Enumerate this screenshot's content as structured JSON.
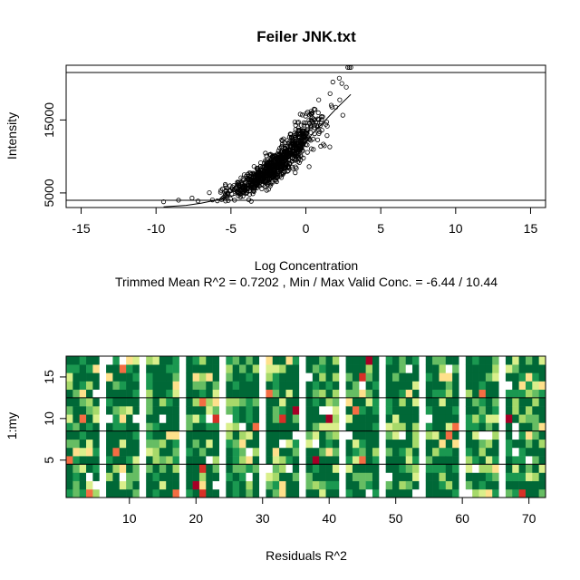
{
  "chart_data": [
    {
      "type": "scatter",
      "title": "Feiler JNK.txt",
      "xlabel": "Log Concentration",
      "ylabel": "Intensity",
      "subtitle": "Trimmed Mean R^2 = 0.7202 , Min / Max Valid Conc. = -6.44 / 10.44",
      "xlim": [
        -16,
        16
      ],
      "ylim": [
        3000,
        22500
      ],
      "x_ticks": [
        -15,
        -10,
        -5,
        0,
        5,
        10,
        15
      ],
      "y_ticks": [
        5000,
        15000
      ],
      "hlines": [
        4000,
        21500
      ],
      "grid": false,
      "fit_curve": {
        "x": [
          -9.5,
          -8,
          -7,
          -6,
          -5,
          -4,
          -3,
          -2,
          -1,
          0,
          1,
          2,
          3
        ],
        "y": [
          3100,
          3300,
          3600,
          4000,
          4500,
          5300,
          6500,
          8100,
          10000,
          12100,
          14300,
          16500,
          18500
        ]
      },
      "point_cloud": {
        "x_range": [
          -6.5,
          2.5
        ],
        "n_points": 900,
        "color": "#000000",
        "outliers": [
          {
            "x": -9.5,
            "y": 3800
          },
          {
            "x": -8.5,
            "y": 4000
          },
          {
            "x": -7.6,
            "y": 4300
          },
          {
            "x": -7.2,
            "y": 3900
          },
          {
            "x": 2.8,
            "y": 22200
          },
          {
            "x": 2.9,
            "y": 22200
          },
          {
            "x": 3.0,
            "y": 22200
          },
          {
            "x": 2.4,
            "y": 20000
          },
          {
            "x": 2.7,
            "y": 19500
          },
          {
            "x": 1.8,
            "y": 20200
          }
        ]
      }
    },
    {
      "type": "heatmap",
      "xlabel": "Residuals R^2",
      "ylabel": "1:my",
      "xlim": [
        0.5,
        72.5
      ],
      "ylim": [
        0.5,
        17.5
      ],
      "x_ticks": [
        10,
        20,
        30,
        40,
        50,
        60,
        70
      ],
      "y_ticks": [
        5,
        10,
        15
      ],
      "hlines": [
        4.5,
        8.5,
        12.5
      ],
      "columns": 72,
      "rows": 17,
      "white_columns": [
        6,
        12,
        18,
        24,
        30,
        36,
        42,
        48,
        54,
        60,
        66
      ],
      "palette": {
        "dark_green": "#006837",
        "green": "#1a9850",
        "light_green": "#66bd63",
        "pale_green": "#a6d96a",
        "yellow_green": "#d9ef8b",
        "pale_yellow": "#fee08b",
        "white": "#ffffff",
        "orange": "#f46d43",
        "red": "#d73027",
        "dark_red": "#a50026"
      }
    }
  ]
}
